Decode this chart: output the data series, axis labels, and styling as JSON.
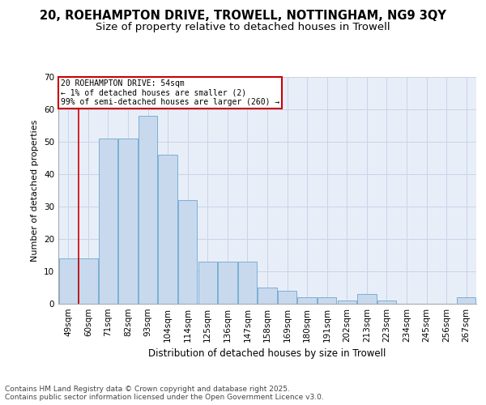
{
  "title1": "20, ROEHAMPTON DRIVE, TROWELL, NOTTINGHAM, NG9 3QY",
  "title2": "Size of property relative to detached houses in Trowell",
  "xlabel": "Distribution of detached houses by size in Trowell",
  "ylabel": "Number of detached properties",
  "categories": [
    "49sqm",
    "60sqm",
    "71sqm",
    "82sqm",
    "93sqm",
    "104sqm",
    "114sqm",
    "125sqm",
    "136sqm",
    "147sqm",
    "158sqm",
    "169sqm",
    "180sqm",
    "191sqm",
    "202sqm",
    "213sqm",
    "223sqm",
    "234sqm",
    "245sqm",
    "256sqm",
    "267sqm"
  ],
  "values": [
    14,
    14,
    51,
    51,
    58,
    46,
    32,
    13,
    13,
    13,
    5,
    4,
    2,
    2,
    1,
    3,
    1,
    0,
    0,
    0,
    2
  ],
  "bar_color": "#c8d9ee",
  "bar_edge_color": "#7bafd4",
  "vline_color": "#cc0000",
  "vline_x_index": 0.5,
  "annotation_text": "20 ROEHAMPTON DRIVE: 54sqm\n← 1% of detached houses are smaller (2)\n99% of semi-detached houses are larger (260) →",
  "annotation_box_color": "#cc0000",
  "ylim": [
    0,
    70
  ],
  "yticks": [
    0,
    10,
    20,
    30,
    40,
    50,
    60,
    70
  ],
  "grid_color": "#c8d4e8",
  "bg_color": "#e8eef8",
  "footer": "Contains HM Land Registry data © Crown copyright and database right 2025.\nContains public sector information licensed under the Open Government Licence v3.0.",
  "title1_fontsize": 10.5,
  "title2_fontsize": 9.5,
  "xlabel_fontsize": 8.5,
  "ylabel_fontsize": 8,
  "tick_fontsize": 7.5,
  "footer_fontsize": 6.5
}
